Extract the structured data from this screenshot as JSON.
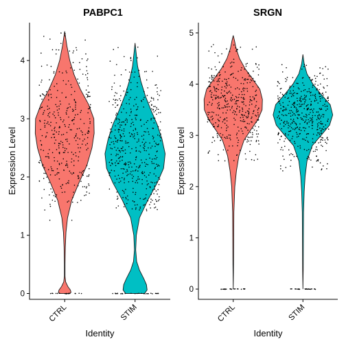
{
  "chart_data": [
    {
      "type": "violin",
      "title": "PABPC1",
      "xlabel": "Identity",
      "ylabel": "Expression Level",
      "categories": [
        "CTRL",
        "STIM"
      ],
      "yticks": [
        0,
        1,
        2,
        3,
        4
      ],
      "ylim": [
        -0.1,
        4.65
      ],
      "grid": false,
      "legend": "none",
      "violins": [
        {
          "group": "CTRL",
          "color": "#F8766D",
          "profile": [
            [
              0,
              0.16
            ],
            [
              0.02,
              0.2
            ],
            [
              0.06,
              0.18
            ],
            [
              0.12,
              0.1
            ],
            [
              0.2,
              0.03
            ],
            [
              0.3,
              0.01
            ],
            [
              0.5,
              0.01
            ],
            [
              0.8,
              0.02
            ],
            [
              1.05,
              0.04
            ],
            [
              1.3,
              0.09
            ],
            [
              1.6,
              0.22
            ],
            [
              1.9,
              0.45
            ],
            [
              2.2,
              0.7
            ],
            [
              2.5,
              0.86
            ],
            [
              2.75,
              0.93
            ],
            [
              3.0,
              0.92
            ],
            [
              3.25,
              0.75
            ],
            [
              3.5,
              0.5
            ],
            [
              3.75,
              0.3
            ],
            [
              4.0,
              0.16
            ],
            [
              4.25,
              0.07
            ],
            [
              4.5,
              0.0
            ]
          ],
          "zero_band": [
            0,
            0.53
          ],
          "points_band": [
            1.25,
            4.5
          ],
          "points_count": 380
        },
        {
          "group": "STIM",
          "color": "#00BFC4",
          "profile": [
            [
              0,
              0.3
            ],
            [
              0.06,
              0.38
            ],
            [
              0.15,
              0.36
            ],
            [
              0.25,
              0.28
            ],
            [
              0.4,
              0.14
            ],
            [
              0.55,
              0.05
            ],
            [
              0.75,
              0.02
            ],
            [
              1.0,
              0.04
            ],
            [
              1.3,
              0.14
            ],
            [
              1.6,
              0.4
            ],
            [
              1.9,
              0.7
            ],
            [
              2.15,
              0.9
            ],
            [
              2.4,
              0.95
            ],
            [
              2.65,
              0.85
            ],
            [
              2.9,
              0.7
            ],
            [
              3.15,
              0.5
            ],
            [
              3.4,
              0.32
            ],
            [
              3.65,
              0.18
            ],
            [
              3.9,
              0.08
            ],
            [
              4.15,
              0.03
            ],
            [
              4.3,
              0.0
            ]
          ],
          "zero_band": [
            0,
            0.75
          ],
          "points_band": [
            1.4,
            4.3
          ],
          "points_count": 480
        }
      ]
    },
    {
      "type": "violin",
      "title": "SRGN",
      "xlabel": "Identity",
      "ylabel": "Expression Level",
      "categories": [
        "CTRL",
        "STIM"
      ],
      "yticks": [
        0,
        1,
        2,
        3,
        4,
        5
      ],
      "ylim": [
        -0.2,
        5.2
      ],
      "grid": false,
      "legend": "none",
      "violins": [
        {
          "group": "CTRL",
          "color": "#F8766D",
          "profile": [
            [
              0,
              0.0
            ],
            [
              0.5,
              0.01
            ],
            [
              1.0,
              0.015
            ],
            [
              1.5,
              0.02
            ],
            [
              2.0,
              0.05
            ],
            [
              2.3,
              0.1
            ],
            [
              2.6,
              0.18
            ],
            [
              2.9,
              0.34
            ],
            [
              3.1,
              0.55
            ],
            [
              3.3,
              0.78
            ],
            [
              3.5,
              0.92
            ],
            [
              3.7,
              0.93
            ],
            [
              3.9,
              0.85
            ],
            [
              4.1,
              0.62
            ],
            [
              4.3,
              0.38
            ],
            [
              4.5,
              0.2
            ],
            [
              4.7,
              0.09
            ],
            [
              4.85,
              0.04
            ],
            [
              4.95,
              0.0
            ]
          ],
          "zero_band": [
            0,
            0.4
          ],
          "points_band": [
            2.5,
            4.8
          ],
          "points_count": 420
        },
        {
          "group": "STIM",
          "color": "#00BFC4",
          "profile": [
            [
              0,
              0.0
            ],
            [
              0.4,
              0.01
            ],
            [
              1.0,
              0.015
            ],
            [
              1.5,
              0.02
            ],
            [
              1.9,
              0.04
            ],
            [
              2.2,
              0.07
            ],
            [
              2.5,
              0.13
            ],
            [
              2.8,
              0.3
            ],
            [
              3.0,
              0.58
            ],
            [
              3.2,
              0.85
            ],
            [
              3.4,
              0.95
            ],
            [
              3.6,
              0.87
            ],
            [
              3.8,
              0.58
            ],
            [
              4.0,
              0.32
            ],
            [
              4.2,
              0.13
            ],
            [
              4.4,
              0.04
            ],
            [
              4.58,
              0.0
            ]
          ],
          "zero_band": [
            0,
            0.45
          ],
          "points_band": [
            2.3,
            4.45
          ],
          "points_count": 460
        }
      ]
    }
  ]
}
